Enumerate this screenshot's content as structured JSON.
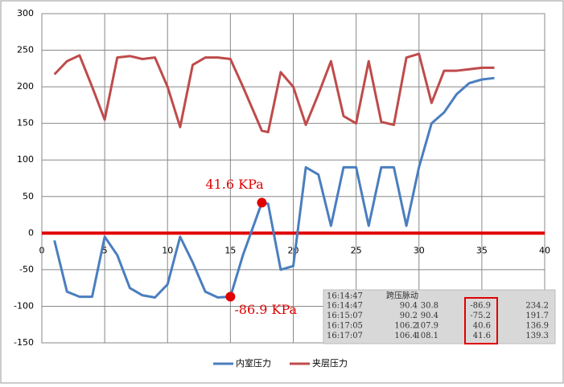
{
  "chart_data": {
    "type": "line",
    "x": [
      1,
      2,
      3,
      4,
      5,
      6,
      7,
      8,
      9,
      10,
      11,
      12,
      13,
      14,
      15,
      16,
      17.5,
      18,
      19,
      20,
      21,
      22,
      23,
      24,
      25,
      26,
      27,
      28,
      29,
      30,
      31,
      32,
      33,
      34,
      35,
      36
    ],
    "series": [
      {
        "name": "内室压力",
        "color": "#4a7ebf",
        "values": [
          -10,
          -80,
          -87,
          -87,
          -5,
          -30,
          -75,
          -85,
          -88,
          -70,
          -5,
          -40,
          -80,
          -88,
          -86.9,
          -30,
          41.6,
          40,
          -50,
          -45,
          90,
          80,
          10,
          90,
          90,
          10,
          90,
          90,
          10,
          90,
          150,
          165,
          190,
          205,
          210,
          212
        ]
      },
      {
        "name": "夹层压力",
        "color": "#bf4b4b",
        "values": [
          217,
          235,
          243,
          200,
          155,
          240,
          242,
          238,
          240,
          200,
          145,
          230,
          240,
          240,
          238,
          200,
          140,
          138,
          220,
          200,
          148,
          190,
          235,
          160,
          150,
          235,
          152,
          148,
          240,
          245,
          178,
          222,
          222,
          224,
          226,
          226
        ]
      }
    ],
    "xlim": [
      0,
      40
    ],
    "xticks": [
      0,
      5,
      10,
      15,
      20,
      25,
      30,
      35,
      40
    ],
    "ylim": [
      -150,
      300
    ],
    "yticks": [
      -150,
      -100,
      -50,
      0,
      50,
      100,
      150,
      200,
      250,
      300
    ],
    "grid": true,
    "zero_line_color": "#e00000",
    "highlights": [
      {
        "x": 17.5,
        "y": 41.6,
        "label": "41.6 KPa"
      },
      {
        "x": 15,
        "y": -86.9,
        "label": "-86.9 KPa"
      }
    ],
    "inset": {
      "header": [
        "16:14:47",
        "跨压脉动"
      ],
      "rows": [
        [
          "16:14:47",
          "90.4",
          "30.8",
          "-86.9",
          "234.2"
        ],
        [
          "16:15:07",
          "90.2",
          "90.4",
          "-75.2",
          "191.7"
        ],
        [
          "16:17:05",
          "106.2",
          "107.9",
          "40.6",
          "136.9"
        ],
        [
          "16:17:07",
          "106.4",
          "108.1",
          "41.6",
          "139.3"
        ]
      ]
    }
  }
}
